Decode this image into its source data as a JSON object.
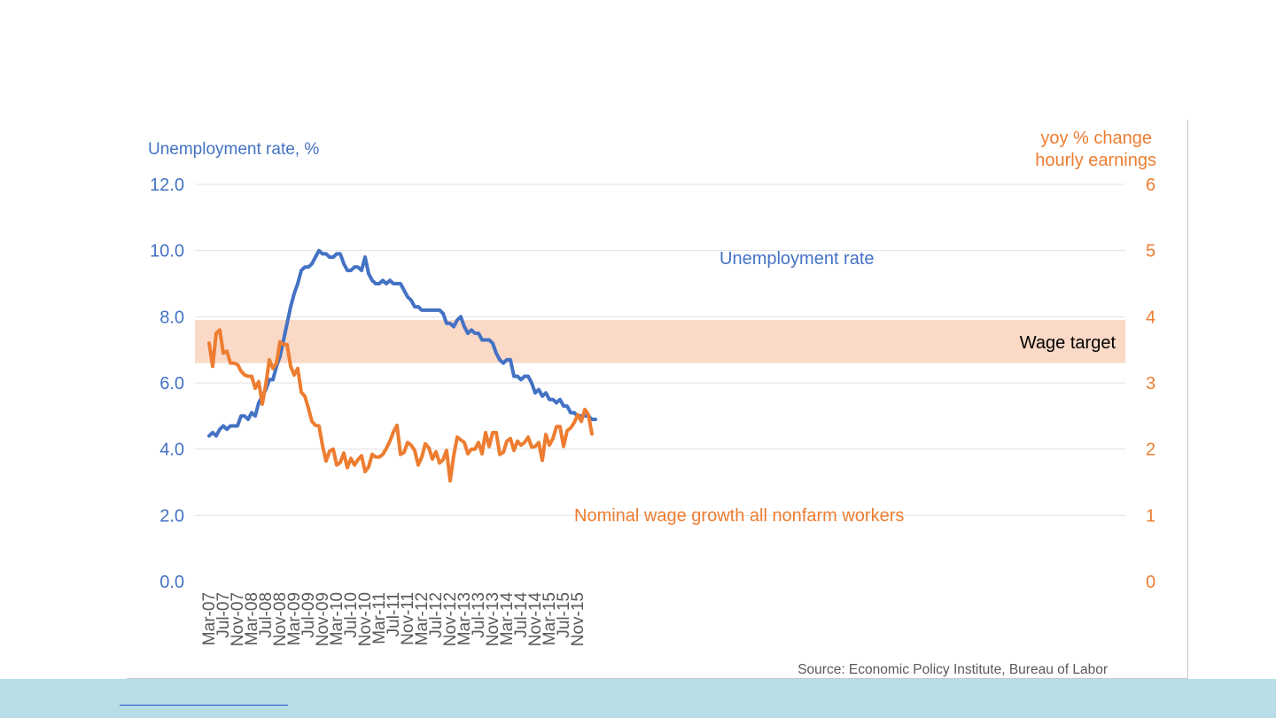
{
  "chart_data": {
    "type": "line",
    "title": "",
    "left_axis": {
      "label": "Unemployment rate, %",
      "ylim": [
        0,
        12
      ],
      "ticks": [
        "0.0",
        "2.0",
        "4.0",
        "6.0",
        "8.0",
        "10.0",
        "12.0"
      ],
      "color": "#4472c4"
    },
    "right_axis": {
      "label_lines": [
        "yoy % change",
        "hourly earnings"
      ],
      "ylim": [
        0,
        6
      ],
      "ticks": [
        "0",
        "1",
        "2",
        "3",
        "4",
        "5",
        "6"
      ],
      "color": "#ed7d31"
    },
    "x_tick_labels": [
      "Mar-07",
      "Jul-07",
      "Nov-07",
      "Mar-08",
      "Jul-08",
      "Nov-08",
      "Mar-09",
      "Jul-09",
      "Nov-09",
      "Mar-10",
      "Jul-10",
      "Nov-10",
      "Mar-11",
      "Jul-11",
      "Nov-11",
      "Mar-12",
      "Jul-12",
      "Nov-12",
      "Mar-13",
      "Jul-13",
      "Nov-13",
      "Mar-14",
      "Jul-14",
      "Nov-14",
      "Mar-15",
      "Jul-15",
      "Nov-15"
    ],
    "x_start": "Mar-07",
    "band": {
      "label": "Wage target",
      "from": 3.3,
      "to": 3.95,
      "axis": "right",
      "color": "#fad9c7"
    },
    "annotations": {
      "unemployment": "Unemployment rate",
      "wages": "Nominal wage growth all nonfarm workers"
    },
    "series": [
      {
        "name": "Unemployment rate",
        "axis": "left",
        "color": "#4472c4",
        "values": [
          4.4,
          4.5,
          4.4,
          4.6,
          4.7,
          4.6,
          4.7,
          4.7,
          4.7,
          5.0,
          5.0,
          4.9,
          5.1,
          5.0,
          5.4,
          5.6,
          5.8,
          6.1,
          6.1,
          6.5,
          6.8,
          7.3,
          7.8,
          8.3,
          8.7,
          9.0,
          9.4,
          9.5,
          9.5,
          9.6,
          9.8,
          10.0,
          9.9,
          9.9,
          9.8,
          9.8,
          9.9,
          9.9,
          9.6,
          9.4,
          9.4,
          9.5,
          9.5,
          9.4,
          9.8,
          9.3,
          9.1,
          9.0,
          9.0,
          9.1,
          9.0,
          9.1,
          9.0,
          9.0,
          9.0,
          8.8,
          8.6,
          8.5,
          8.3,
          8.3,
          8.2,
          8.2,
          8.2,
          8.2,
          8.2,
          8.2,
          8.1,
          7.8,
          7.8,
          7.7,
          7.9,
          8.0,
          7.7,
          7.5,
          7.6,
          7.5,
          7.5,
          7.3,
          7.3,
          7.3,
          7.2,
          6.9,
          6.7,
          6.6,
          6.7,
          6.7,
          6.2,
          6.2,
          6.1,
          6.2,
          6.2,
          6.0,
          5.7,
          5.8,
          5.6,
          5.7,
          5.5,
          5.5,
          5.4,
          5.5,
          5.3,
          5.3,
          5.1,
          5.1,
          5.0,
          5.0,
          5.0,
          5.0,
          4.9,
          4.9
        ]
      },
      {
        "name": "Nominal wage growth all nonfarm workers",
        "axis": "right",
        "color": "#ed7d31",
        "values": [
          3.6,
          3.25,
          3.75,
          3.8,
          3.45,
          3.48,
          3.3,
          3.3,
          3.28,
          3.18,
          3.12,
          3.1,
          3.1,
          2.92,
          3.02,
          2.68,
          2.98,
          3.35,
          3.22,
          3.3,
          3.62,
          3.58,
          3.58,
          3.25,
          3.12,
          3.22,
          2.86,
          2.8,
          2.62,
          2.42,
          2.36,
          2.35,
          2.05,
          1.82,
          1.97,
          2.0,
          1.76,
          1.8,
          1.94,
          1.72,
          1.86,
          1.76,
          1.84,
          1.9,
          1.66,
          1.73,
          1.92,
          1.88,
          1.88,
          1.92,
          2.01,
          2.12,
          2.26,
          2.36,
          1.92,
          1.95,
          2.1,
          2.06,
          1.98,
          1.76,
          1.88,
          2.08,
          2.02,
          1.85,
          1.96,
          1.79,
          1.84,
          1.98,
          1.52,
          1.9,
          2.18,
          2.14,
          2.1,
          1.93,
          2.0,
          2.0,
          2.1,
          1.93,
          2.25,
          2.04,
          2.25,
          2.25,
          1.92,
          1.95,
          2.12,
          2.16,
          1.98,
          2.12,
          2.06,
          2.1,
          2.18,
          2.03,
          2.04,
          2.1,
          1.83,
          2.22,
          2.06,
          2.16,
          2.34,
          2.34,
          2.04,
          2.28,
          2.32,
          2.4,
          2.52,
          2.42,
          2.6,
          2.52,
          2.23
        ]
      }
    ],
    "source": "Source: Economic Policy Institute, Bureau of Labor"
  }
}
